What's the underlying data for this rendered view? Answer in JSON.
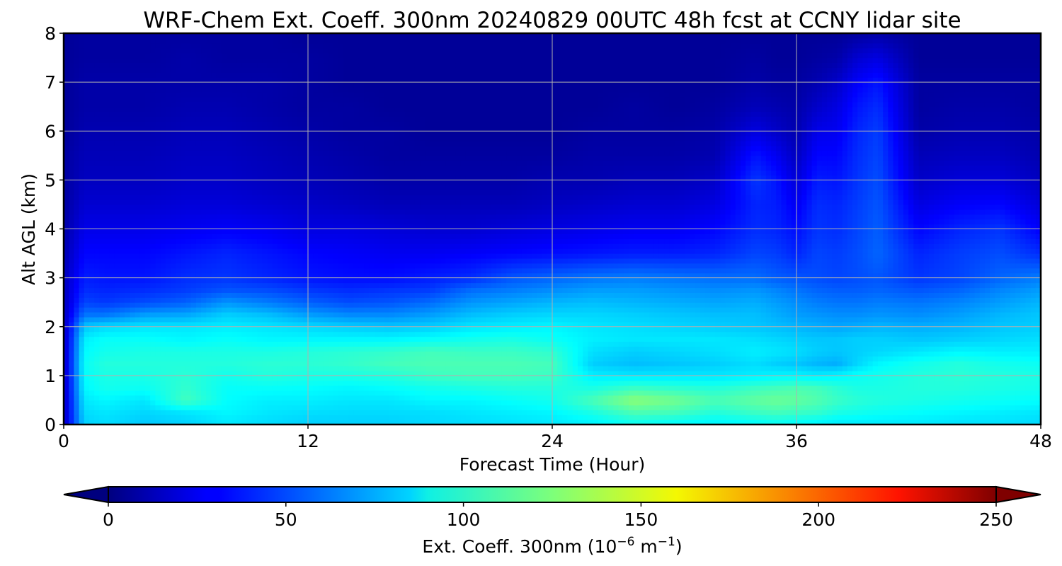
{
  "chart_data": {
    "type": "heatmap",
    "title": "WRF-Chem Ext. Coeff. 300nm  20240829 00UTC 48h fcst at CCNY lidar site",
    "xlabel": "Forecast Time (Hour)",
    "ylabel": "Alt AGL (km)",
    "xlim": [
      0,
      48
    ],
    "ylim": [
      0,
      8
    ],
    "xticks": [
      "0",
      "12",
      "24",
      "36",
      "48"
    ],
    "yticks": [
      "0",
      "1",
      "2",
      "3",
      "4",
      "5",
      "6",
      "7",
      "8"
    ],
    "grid": true,
    "colormap": "jet",
    "colorbar": {
      "label_main": "Ext. Coeff. 300nm  (10",
      "label_exp1": "−6",
      "label_mid": " m",
      "label_exp2": "−1",
      "label_end": ")",
      "range": [
        0,
        250
      ],
      "ticks": [
        "0",
        "50",
        "100",
        "150",
        "200",
        "250"
      ],
      "extend": "both",
      "orientation": "horizontal"
    },
    "x": [
      0,
      1,
      2,
      4,
      6,
      8,
      10,
      12,
      14,
      16,
      18,
      20,
      22,
      24,
      26,
      28,
      30,
      32,
      34,
      35,
      36,
      37,
      38,
      39,
      40,
      42,
      44,
      46,
      48
    ],
    "y": [
      0,
      0.25,
      0.5,
      0.75,
      1,
      1.25,
      1.5,
      1.75,
      2,
      2.25,
      2.5,
      2.75,
      3,
      3.5,
      4,
      4.5,
      5,
      5.5,
      6,
      6.5,
      7,
      7.5,
      8
    ],
    "z_columns": [
      [
        15,
        15,
        15,
        15,
        15,
        15,
        15,
        15,
        15,
        15,
        15,
        15,
        15,
        12,
        10,
        8,
        8,
        8,
        6,
        6,
        6,
        6,
        6
      ],
      [
        82,
        85,
        88,
        92,
        94,
        95,
        93,
        90,
        80,
        60,
        48,
        42,
        38,
        32,
        26,
        20,
        16,
        14,
        12,
        10,
        10,
        8,
        8
      ],
      [
        85,
        88,
        92,
        98,
        100,
        102,
        98,
        95,
        85,
        60,
        45,
        40,
        36,
        32,
        26,
        20,
        16,
        14,
        12,
        10,
        10,
        8,
        8
      ],
      [
        80,
        84,
        88,
        96,
        100,
        102,
        100,
        95,
        88,
        70,
        50,
        42,
        36,
        32,
        26,
        20,
        16,
        14,
        12,
        10,
        10,
        8,
        8
      ],
      [
        82,
        88,
        110,
        106,
        104,
        102,
        100,
        92,
        88,
        72,
        55,
        46,
        42,
        36,
        28,
        22,
        18,
        16,
        14,
        12,
        10,
        10,
        8
      ],
      [
        88,
        92,
        94,
        95,
        98,
        102,
        100,
        95,
        90,
        82,
        68,
        52,
        44,
        40,
        30,
        22,
        18,
        16,
        14,
        12,
        10,
        8,
        8
      ],
      [
        85,
        88,
        90,
        95,
        102,
        104,
        100,
        92,
        88,
        78,
        62,
        50,
        40,
        36,
        28,
        20,
        16,
        14,
        12,
        10,
        10,
        8,
        8
      ],
      [
        82,
        86,
        90,
        94,
        100,
        104,
        102,
        92,
        85,
        70,
        55,
        45,
        36,
        32,
        24,
        18,
        14,
        12,
        10,
        8,
        8,
        8,
        6
      ],
      [
        82,
        85,
        88,
        92,
        100,
        106,
        104,
        92,
        82,
        65,
        50,
        42,
        34,
        30,
        24,
        16,
        12,
        10,
        8,
        8,
        6,
        6,
        6
      ],
      [
        82,
        85,
        88,
        94,
        102,
        110,
        106,
        92,
        80,
        65,
        52,
        44,
        34,
        28,
        22,
        14,
        10,
        8,
        8,
        6,
        6,
        6,
        6
      ],
      [
        84,
        86,
        92,
        98,
        108,
        112,
        110,
        95,
        82,
        70,
        58,
        46,
        38,
        28,
        20,
        14,
        10,
        8,
        6,
        6,
        6,
        6,
        6
      ],
      [
        85,
        88,
        92,
        100,
        110,
        112,
        108,
        98,
        88,
        78,
        68,
        58,
        42,
        30,
        20,
        14,
        10,
        8,
        6,
        6,
        6,
        6,
        6
      ],
      [
        86,
        90,
        95,
        102,
        110,
        112,
        108,
        100,
        90,
        82,
        72,
        62,
        52,
        32,
        22,
        14,
        10,
        8,
        6,
        6,
        6,
        6,
        6
      ],
      [
        88,
        92,
        98,
        102,
        108,
        110,
        105,
        96,
        92,
        84,
        76,
        66,
        56,
        34,
        24,
        16,
        12,
        8,
        6,
        6,
        6,
        6,
        6
      ],
      [
        90,
        100,
        112,
        100,
        90,
        82,
        86,
        90,
        88,
        84,
        78,
        70,
        60,
        36,
        26,
        18,
        12,
        10,
        8,
        6,
        6,
        6,
        6
      ],
      [
        95,
        112,
        128,
        108,
        88,
        78,
        82,
        88,
        86,
        82,
        76,
        70,
        62,
        38,
        28,
        20,
        14,
        10,
        8,
        8,
        6,
        6,
        6
      ],
      [
        92,
        110,
        122,
        105,
        88,
        80,
        84,
        88,
        84,
        80,
        74,
        68,
        60,
        38,
        28,
        20,
        14,
        10,
        8,
        6,
        6,
        6,
        6
      ],
      [
        90,
        102,
        112,
        102,
        88,
        82,
        86,
        88,
        82,
        78,
        72,
        66,
        58,
        40,
        32,
        24,
        18,
        12,
        10,
        8,
        6,
        6,
        6
      ],
      [
        92,
        108,
        118,
        108,
        90,
        86,
        90,
        86,
        80,
        78,
        74,
        68,
        58,
        48,
        42,
        40,
        44,
        36,
        24,
        14,
        10,
        8,
        6
      ],
      [
        94,
        110,
        120,
        110,
        92,
        82,
        88,
        84,
        78,
        74,
        70,
        64,
        54,
        46,
        40,
        38,
        36,
        28,
        18,
        12,
        8,
        6,
        6
      ],
      [
        92,
        108,
        118,
        112,
        92,
        80,
        86,
        82,
        76,
        70,
        66,
        60,
        52,
        40,
        34,
        28,
        22,
        16,
        12,
        10,
        8,
        6,
        6
      ],
      [
        90,
        106,
        114,
        110,
        90,
        76,
        82,
        80,
        74,
        68,
        62,
        56,
        50,
        48,
        44,
        42,
        38,
        32,
        26,
        18,
        12,
        8,
        6
      ],
      [
        88,
        100,
        108,
        104,
        92,
        74,
        80,
        80,
        72,
        66,
        60,
        54,
        48,
        46,
        42,
        40,
        36,
        32,
        28,
        24,
        18,
        10,
        6
      ],
      [
        88,
        98,
        104,
        100,
        96,
        84,
        82,
        82,
        74,
        66,
        60,
        54,
        50,
        50,
        48,
        46,
        44,
        42,
        40,
        36,
        30,
        20,
        8
      ],
      [
        88,
        96,
        102,
        100,
        98,
        92,
        84,
        82,
        76,
        68,
        62,
        56,
        52,
        56,
        54,
        52,
        50,
        48,
        46,
        42,
        36,
        24,
        10
      ],
      [
        88,
        94,
        100,
        102,
        102,
        98,
        88,
        80,
        74,
        66,
        60,
        52,
        44,
        40,
        32,
        24,
        18,
        14,
        10,
        8,
        8,
        6,
        6
      ],
      [
        86,
        92,
        98,
        102,
        104,
        102,
        92,
        82,
        76,
        70,
        64,
        56,
        48,
        46,
        40,
        30,
        22,
        16,
        12,
        10,
        8,
        6,
        6
      ],
      [
        86,
        90,
        96,
        100,
        102,
        98,
        90,
        84,
        80,
        76,
        70,
        64,
        56,
        50,
        44,
        32,
        22,
        16,
        12,
        10,
        8,
        6,
        6
      ],
      [
        84,
        88,
        94,
        98,
        100,
        96,
        90,
        86,
        82,
        80,
        76,
        70,
        62,
        42,
        30,
        22,
        16,
        12,
        10,
        8,
        8,
        6,
        6
      ]
    ]
  }
}
